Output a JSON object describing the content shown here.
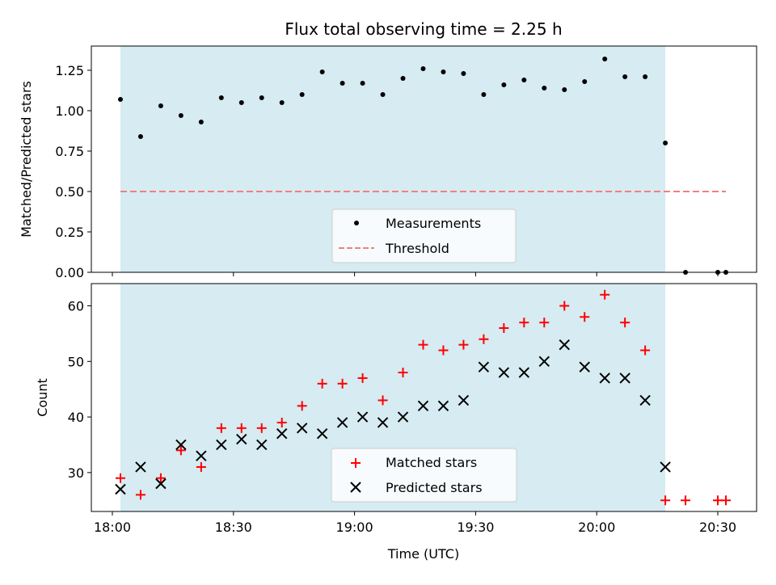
{
  "chart_data": {
    "type": "scatter",
    "title": "Flux total observing time = 2.25 h",
    "xlabel": "Time (UTC)",
    "x_tick_labels": [
      "18:00",
      "18:30",
      "19:00",
      "19:30",
      "20:00",
      "20:30"
    ],
    "x_ticks": [
      "18:00",
      "18:30",
      "19:00",
      "19:30",
      "20:00",
      "20:30"
    ],
    "shaded_interval": {
      "start": "18:02",
      "end": "20:17",
      "color": "#add8e6"
    },
    "panels": [
      {
        "ylabel": "Matched/Predicted stars",
        "ylim": [
          0,
          1.4
        ],
        "y_ticks": [
          "0.00",
          "0.25",
          "0.50",
          "0.75",
          "1.00",
          "1.25"
        ],
        "legend_position": "lower center",
        "series": [
          {
            "name": "Measurements",
            "marker": "dot",
            "color": "#000000",
            "points": [
              [
                "18:02",
                1.07
              ],
              [
                "18:07",
                0.84
              ],
              [
                "18:12",
                1.03
              ],
              [
                "18:17",
                0.97
              ],
              [
                "18:22",
                0.93
              ],
              [
                "18:27",
                1.08
              ],
              [
                "18:32",
                1.05
              ],
              [
                "18:37",
                1.08
              ],
              [
                "18:42",
                1.05
              ],
              [
                "18:47",
                1.1
              ],
              [
                "18:52",
                1.24
              ],
              [
                "18:57",
                1.17
              ],
              [
                "19:02",
                1.17
              ],
              [
                "19:07",
                1.1
              ],
              [
                "19:12",
                1.2
              ],
              [
                "19:17",
                1.26
              ],
              [
                "19:22",
                1.24
              ],
              [
                "19:27",
                1.23
              ],
              [
                "19:32",
                1.1
              ],
              [
                "19:37",
                1.16
              ],
              [
                "19:42",
                1.19
              ],
              [
                "19:47",
                1.14
              ],
              [
                "19:52",
                1.13
              ],
              [
                "19:57",
                1.18
              ],
              [
                "20:02",
                1.32
              ],
              [
                "20:07",
                1.21
              ],
              [
                "20:12",
                1.21
              ],
              [
                "20:17",
                0.8
              ],
              [
                "20:22",
                0.0
              ],
              [
                "20:30",
                0.0
              ],
              [
                "20:32",
                0.0
              ]
            ]
          },
          {
            "name": "Threshold",
            "type": "line",
            "style": "dashed",
            "color": "#f08080",
            "points": [
              [
                "18:02",
                0.5
              ],
              [
                "20:32",
                0.5
              ]
            ]
          }
        ]
      },
      {
        "ylabel": "Count",
        "ylim": [
          23,
          64
        ],
        "y_ticks": [
          "30",
          "40",
          "50",
          "60"
        ],
        "legend_position": "lower center",
        "series": [
          {
            "name": "Matched stars",
            "marker": "plus",
            "color": "#ff0000",
            "points": [
              [
                "18:02",
                29
              ],
              [
                "18:07",
                26
              ],
              [
                "18:12",
                29
              ],
              [
                "18:17",
                34
              ],
              [
                "18:22",
                31
              ],
              [
                "18:27",
                38
              ],
              [
                "18:32",
                38
              ],
              [
                "18:37",
                38
              ],
              [
                "18:42",
                39
              ],
              [
                "18:47",
                42
              ],
              [
                "18:52",
                46
              ],
              [
                "18:57",
                46
              ],
              [
                "19:02",
                47
              ],
              [
                "19:07",
                43
              ],
              [
                "19:12",
                48
              ],
              [
                "19:17",
                53
              ],
              [
                "19:22",
                52
              ],
              [
                "19:27",
                53
              ],
              [
                "19:32",
                54
              ],
              [
                "19:37",
                56
              ],
              [
                "19:42",
                57
              ],
              [
                "19:47",
                57
              ],
              [
                "19:52",
                60
              ],
              [
                "19:57",
                58
              ],
              [
                "20:02",
                62
              ],
              [
                "20:07",
                57
              ],
              [
                "20:12",
                52
              ],
              [
                "20:17",
                25
              ],
              [
                "20:22",
                25
              ],
              [
                "20:30",
                25
              ],
              [
                "20:32",
                25
              ]
            ]
          },
          {
            "name": "Predicted stars",
            "marker": "x",
            "color": "#000000",
            "points": [
              [
                "18:02",
                27
              ],
              [
                "18:07",
                31
              ],
              [
                "18:12",
                28
              ],
              [
                "18:17",
                35
              ],
              [
                "18:22",
                33
              ],
              [
                "18:27",
                35
              ],
              [
                "18:32",
                36
              ],
              [
                "18:37",
                35
              ],
              [
                "18:42",
                37
              ],
              [
                "18:47",
                38
              ],
              [
                "18:52",
                37
              ],
              [
                "18:57",
                39
              ],
              [
                "19:02",
                40
              ],
              [
                "19:07",
                39
              ],
              [
                "19:12",
                40
              ],
              [
                "19:17",
                42
              ],
              [
                "19:22",
                42
              ],
              [
                "19:27",
                43
              ],
              [
                "19:32",
                49
              ],
              [
                "19:37",
                48
              ],
              [
                "19:42",
                48
              ],
              [
                "19:47",
                50
              ],
              [
                "19:52",
                53
              ],
              [
                "19:57",
                49
              ],
              [
                "20:02",
                47
              ],
              [
                "20:07",
                47
              ],
              [
                "20:12",
                43
              ],
              [
                "20:17",
                31
              ]
            ]
          }
        ]
      }
    ]
  }
}
